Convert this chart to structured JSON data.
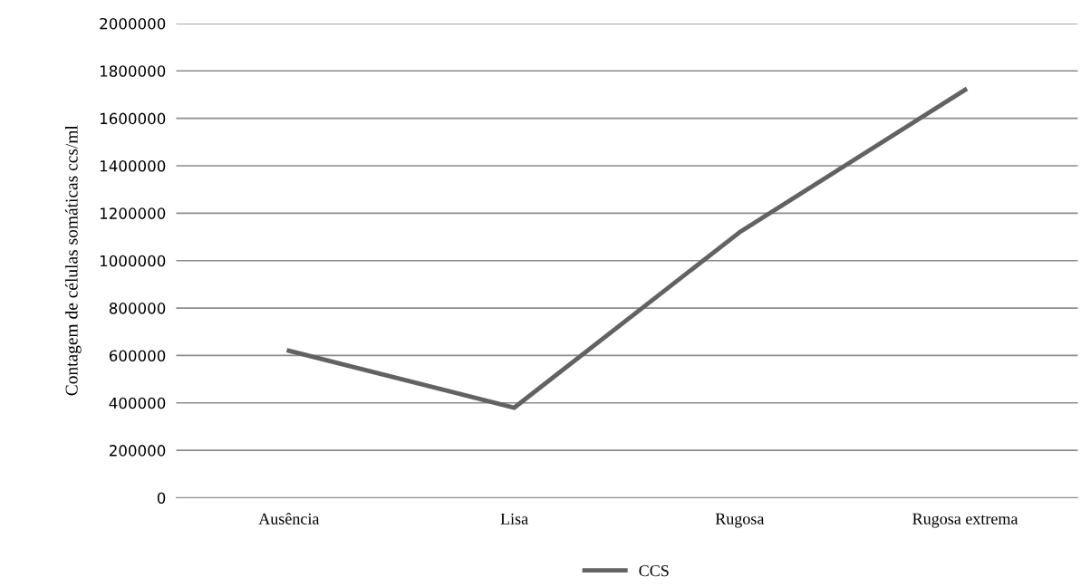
{
  "chart_data": {
    "type": "line",
    "ylabel": "Contagem de células somáticas ccs/ml",
    "categories": [
      "Ausência",
      "Lisa",
      "Rugosa",
      "Rugosa extrema"
    ],
    "series": [
      {
        "name": "CCS",
        "color": "#626262",
        "values": [
          620000,
          380000,
          1120000,
          1720000
        ]
      }
    ],
    "ylim": [
      0,
      2000000
    ],
    "yticks": [
      0,
      200000,
      400000,
      600000,
      800000,
      1000000,
      1200000,
      1400000,
      1600000,
      1800000,
      2000000
    ],
    "grid": "y",
    "legend": "bottom",
    "marker": "none",
    "line_style": "solid"
  }
}
